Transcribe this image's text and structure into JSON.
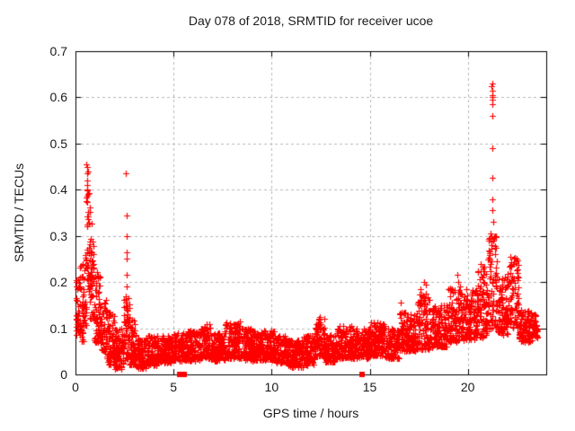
{
  "window": {
    "background": "#ffffff",
    "foreground": "#1a1a1a"
  },
  "chart_data": {
    "type": "scatter",
    "title": "Day 078 of 2018, SRMTID for receiver ucoe",
    "xlabel": "GPS time / hours",
    "ylabel": "SRMTID / TECUs",
    "xlim": [
      0,
      24
    ],
    "ylim": [
      0,
      0.7
    ],
    "xticks": {
      "values": [
        0,
        5,
        10,
        15,
        20
      ],
      "labels": [
        "0",
        "5",
        "10",
        "15",
        "20"
      ]
    },
    "yticks": {
      "values": [
        0,
        0.1,
        0.2,
        0.3,
        0.4,
        0.5,
        0.6,
        0.7
      ],
      "labels": [
        "0",
        "0.1",
        "0.2",
        "0.3",
        "0.4",
        "0.5",
        "0.6",
        "0.7"
      ]
    },
    "grid": {
      "visible": true,
      "style": "dashed",
      "color": "#b8b8b8"
    },
    "axis_color": "#000000",
    "legend": "none",
    "series": [
      {
        "name": "srmtid",
        "marker": "plus",
        "color": "#ff0000",
        "seed": 123456,
        "bands_format": [
          "t_start",
          "t_end",
          "n_points",
          "v_min",
          "v_max",
          "low_bias_power"
        ],
        "bands": [
          [
            0.02,
            0.15,
            22,
            0.055,
            0.21,
            0.8
          ],
          [
            0.15,
            0.45,
            55,
            0.07,
            0.24,
            1.3
          ],
          [
            0.45,
            0.55,
            16,
            0.1,
            0.3,
            1.0
          ],
          [
            0.55,
            0.75,
            40,
            0.18,
            0.4,
            1.1
          ],
          [
            0.72,
            0.95,
            45,
            0.12,
            0.33,
            1.5
          ],
          [
            0.95,
            1.25,
            55,
            0.07,
            0.23,
            1.5
          ],
          [
            1.25,
            1.6,
            60,
            0.05,
            0.18,
            1.4
          ],
          [
            1.6,
            2.0,
            70,
            0.02,
            0.14,
            1.4
          ],
          [
            2.0,
            2.45,
            80,
            0.012,
            0.1,
            1.3
          ],
          [
            2.45,
            2.75,
            55,
            0.03,
            0.17,
            1.2
          ],
          [
            2.75,
            3.1,
            60,
            0.02,
            0.12,
            1.5
          ],
          [
            3.1,
            3.6,
            85,
            0.012,
            0.075,
            1.2
          ],
          [
            3.6,
            4.2,
            100,
            0.02,
            0.085,
            1.4
          ],
          [
            4.2,
            5.0,
            130,
            0.025,
            0.085,
            1.3
          ],
          [
            5.0,
            5.7,
            110,
            0.03,
            0.09,
            1.3
          ],
          [
            5.7,
            6.4,
            110,
            0.03,
            0.095,
            1.3
          ],
          [
            6.4,
            6.9,
            80,
            0.035,
            0.11,
            1.4
          ],
          [
            6.9,
            7.6,
            110,
            0.03,
            0.09,
            1.3
          ],
          [
            7.6,
            8.4,
            130,
            0.035,
            0.115,
            1.4
          ],
          [
            8.4,
            9.2,
            130,
            0.03,
            0.1,
            1.3
          ],
          [
            9.2,
            10.2,
            160,
            0.03,
            0.095,
            1.3
          ],
          [
            10.2,
            10.8,
            95,
            0.025,
            0.085,
            1.3
          ],
          [
            10.8,
            11.6,
            130,
            0.015,
            0.075,
            1.3
          ],
          [
            11.6,
            12.2,
            95,
            0.02,
            0.085,
            1.3
          ],
          [
            12.2,
            12.7,
            80,
            0.04,
            0.125,
            1.4
          ],
          [
            12.7,
            13.3,
            95,
            0.025,
            0.085,
            1.3
          ],
          [
            13.3,
            14.1,
            130,
            0.035,
            0.105,
            1.4
          ],
          [
            14.1,
            15.0,
            140,
            0.035,
            0.1,
            1.3
          ],
          [
            15.0,
            15.8,
            125,
            0.04,
            0.115,
            1.4
          ],
          [
            15.8,
            16.5,
            110,
            0.035,
            0.1,
            1.3
          ],
          [
            16.5,
            17.4,
            140,
            0.05,
            0.135,
            1.4
          ],
          [
            17.4,
            18.2,
            125,
            0.055,
            0.175,
            1.5
          ],
          [
            18.2,
            19.0,
            125,
            0.06,
            0.15,
            1.4
          ],
          [
            19.0,
            19.8,
            125,
            0.07,
            0.19,
            1.5
          ],
          [
            19.8,
            20.5,
            110,
            0.075,
            0.185,
            1.4
          ],
          [
            20.5,
            21.0,
            80,
            0.08,
            0.24,
            1.5
          ],
          [
            21.0,
            21.5,
            85,
            0.1,
            0.31,
            1.3
          ],
          [
            21.5,
            22.1,
            95,
            0.085,
            0.22,
            1.5
          ],
          [
            22.1,
            22.6,
            75,
            0.1,
            0.255,
            1.3
          ],
          [
            22.6,
            23.3,
            110,
            0.07,
            0.14,
            1.3
          ],
          [
            23.3,
            23.55,
            35,
            0.08,
            0.13,
            1.2
          ]
        ],
        "outliers": [
          [
            0.03,
            0.205
          ],
          [
            0.05,
            0.2
          ],
          [
            0.57,
            0.455
          ],
          [
            0.6,
            0.45
          ],
          [
            0.62,
            0.44
          ],
          [
            0.59,
            0.435
          ],
          [
            0.61,
            0.42
          ],
          [
            0.58,
            0.41
          ],
          [
            0.6,
            0.4
          ],
          [
            0.63,
            0.39
          ],
          [
            2.58,
            0.435
          ],
          [
            2.6,
            0.345
          ],
          [
            2.61,
            0.3
          ],
          [
            2.59,
            0.265
          ],
          [
            2.6,
            0.25
          ],
          [
            2.62,
            0.215
          ],
          [
            2.6,
            0.19
          ],
          [
            2.58,
            0.17
          ],
          [
            2.61,
            0.155
          ],
          [
            2.6,
            0.14
          ],
          [
            16.6,
            0.155
          ],
          [
            17.75,
            0.2
          ],
          [
            17.85,
            0.195
          ],
          [
            17.6,
            0.185
          ],
          [
            19.45,
            0.215
          ],
          [
            19.5,
            0.2
          ],
          [
            21.25,
            0.63
          ],
          [
            21.22,
            0.625
          ],
          [
            21.27,
            0.615
          ],
          [
            21.24,
            0.605
          ],
          [
            21.26,
            0.6
          ],
          [
            21.23,
            0.595
          ],
          [
            21.25,
            0.585
          ],
          [
            21.26,
            0.56
          ],
          [
            21.24,
            0.49
          ],
          [
            21.25,
            0.425
          ],
          [
            21.27,
            0.38
          ],
          [
            21.23,
            0.355
          ],
          [
            21.3,
            0.33
          ],
          [
            21.2,
            0.3
          ],
          [
            22.35,
            0.25
          ],
          [
            22.45,
            0.245
          ]
        ]
      },
      {
        "name": "zero-flags",
        "marker": "filled-square",
        "color": "#ff0000",
        "points": [
          [
            5.3,
            0
          ],
          [
            5.55,
            0
          ],
          [
            14.6,
            0
          ]
        ]
      }
    ]
  }
}
